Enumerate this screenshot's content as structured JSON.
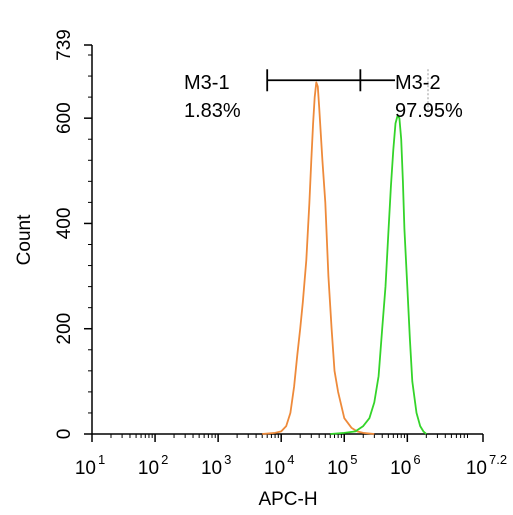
{
  "chart_data": {
    "type": "line",
    "xlabel": "APC-H",
    "ylabel": "Count",
    "x_scale": "log",
    "xlim": [
      10,
      15848932
    ],
    "ylim": [
      0,
      739
    ],
    "x_ticks": [
      {
        "value": 10,
        "base": "10",
        "exp": "1"
      },
      {
        "value": 100,
        "base": "10",
        "exp": "2"
      },
      {
        "value": 1000,
        "base": "10",
        "exp": "3"
      },
      {
        "value": 10000,
        "base": "10",
        "exp": "4"
      },
      {
        "value": 100000,
        "base": "10",
        "exp": "5"
      },
      {
        "value": 1000000,
        "base": "10",
        "exp": "6"
      },
      {
        "value": 15848932,
        "base": "10",
        "exp": "7.2"
      }
    ],
    "y_ticks": [
      {
        "value": 0,
        "label": "0"
      },
      {
        "value": 200,
        "label": "200"
      },
      {
        "value": 400,
        "label": "400"
      },
      {
        "value": 600,
        "label": "600"
      },
      {
        "value": 739,
        "label": "739"
      }
    ],
    "grid": false,
    "legend": "none",
    "series": [
      {
        "color": "#ee8a3a",
        "points": [
          [
            5000,
            0
          ],
          [
            8000,
            2
          ],
          [
            10000,
            5
          ],
          [
            12000,
            15
          ],
          [
            14000,
            40
          ],
          [
            16000,
            90
          ],
          [
            18000,
            150
          ],
          [
            20000,
            200
          ],
          [
            22000,
            250
          ],
          [
            25000,
            330
          ],
          [
            28000,
            440
          ],
          [
            30000,
            520
          ],
          [
            32000,
            590
          ],
          [
            34000,
            640
          ],
          [
            36000,
            668
          ],
          [
            38000,
            660
          ],
          [
            40000,
            620
          ],
          [
            45000,
            520
          ],
          [
            50000,
            440
          ],
          [
            56000,
            300
          ],
          [
            63000,
            200
          ],
          [
            70000,
            120
          ],
          [
            80000,
            80
          ],
          [
            100000,
            30
          ],
          [
            130000,
            12
          ],
          [
            160000,
            5
          ],
          [
            200000,
            2
          ],
          [
            300000,
            0
          ]
        ]
      },
      {
        "color": "#34d42a",
        "points": [
          [
            60000,
            0
          ],
          [
            100000,
            2
          ],
          [
            150000,
            5
          ],
          [
            200000,
            15
          ],
          [
            250000,
            30
          ],
          [
            300000,
            60
          ],
          [
            350000,
            110
          ],
          [
            400000,
            200
          ],
          [
            450000,
            280
          ],
          [
            500000,
            380
          ],
          [
            550000,
            470
          ],
          [
            600000,
            540
          ],
          [
            650000,
            590
          ],
          [
            700000,
            605
          ],
          [
            750000,
            600
          ],
          [
            800000,
            560
          ],
          [
            850000,
            480
          ],
          [
            900000,
            390
          ],
          [
            1000000,
            280
          ],
          [
            1100000,
            180
          ],
          [
            1200000,
            100
          ],
          [
            1400000,
            40
          ],
          [
            1600000,
            15
          ],
          [
            1800000,
            5
          ],
          [
            2000000,
            0
          ]
        ]
      }
    ],
    "gates": [
      {
        "name": "M3-1",
        "percent": "1.83%",
        "from": 6000,
        "to": 180000,
        "y": 672
      },
      {
        "name": "M3-2",
        "percent": "97.95%",
        "from": 180000,
        "to": 16000000,
        "y": 672
      }
    ]
  }
}
